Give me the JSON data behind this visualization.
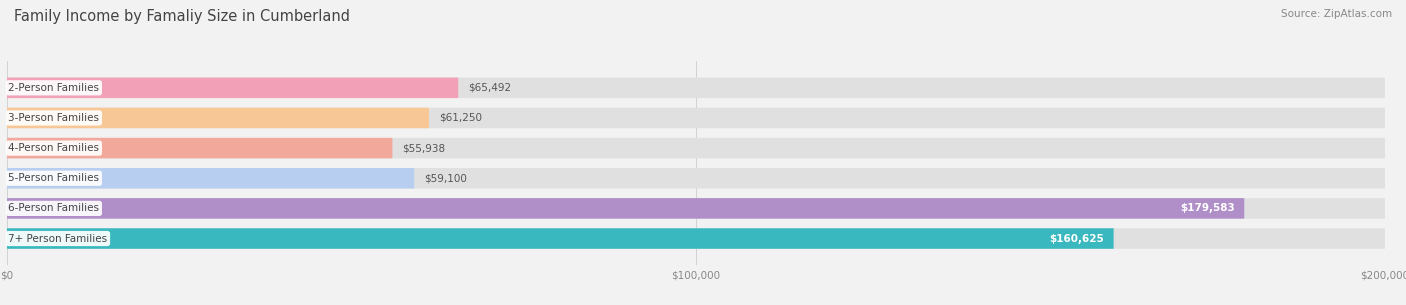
{
  "title": "Family Income by Famaliy Size in Cumberland",
  "source": "Source: ZipAtlas.com",
  "categories": [
    "2-Person Families",
    "3-Person Families",
    "4-Person Families",
    "5-Person Families",
    "6-Person Families",
    "7+ Person Families"
  ],
  "values": [
    65492,
    61250,
    55938,
    59100,
    179583,
    160625
  ],
  "labels": [
    "$65,492",
    "$61,250",
    "$55,938",
    "$59,100",
    "$179,583",
    "$160,625"
  ],
  "bar_colors": [
    "#f2a0b8",
    "#f7c896",
    "#f2a89a",
    "#b8cef0",
    "#b08ec8",
    "#3ab8c0"
  ],
  "background_color": "#f2f2f2",
  "bar_bg_color": "#e0e0e0",
  "xlim_max": 200000,
  "xticks": [
    0,
    100000,
    200000
  ],
  "xticklabels": [
    "$0",
    "$100,000",
    "$200,000"
  ],
  "title_fontsize": 10.5,
  "label_fontsize": 7.5,
  "value_fontsize": 7.5,
  "source_fontsize": 7.5
}
